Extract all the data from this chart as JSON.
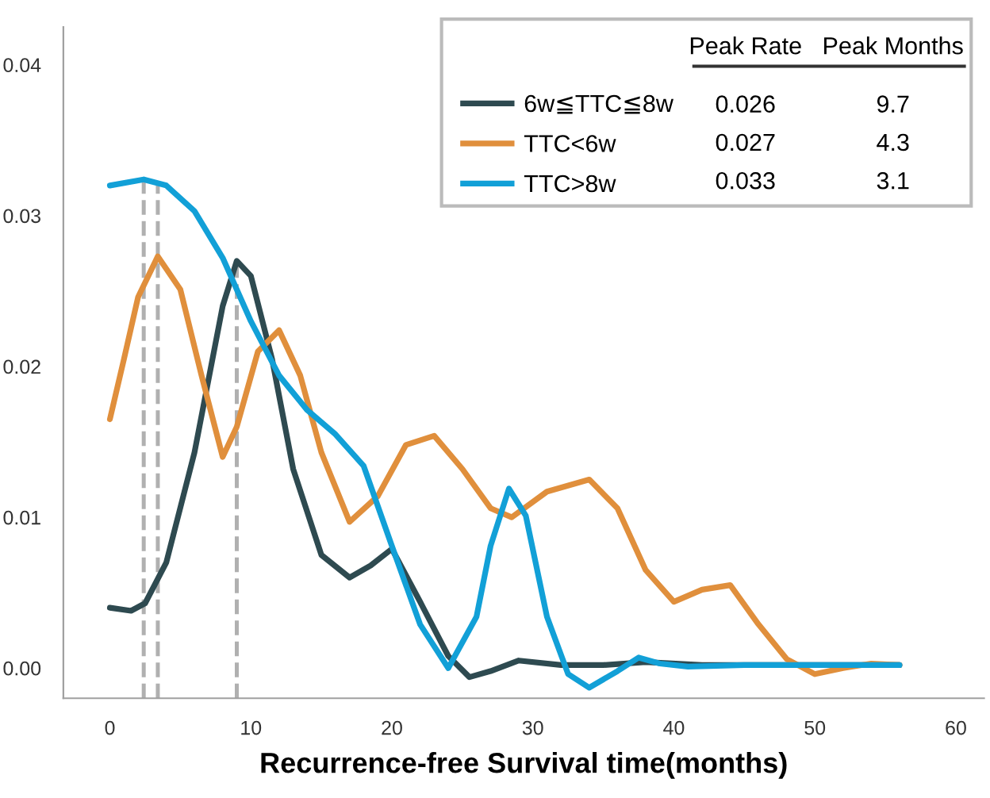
{
  "chart_data": {
    "type": "line",
    "xlabel": "Recurrence-free Survival time(months)",
    "xlim": [
      -3.3,
      62
    ],
    "xticks": [
      0,
      10,
      20,
      30,
      40,
      50,
      60
    ],
    "ylim": [
      -0.002,
      0.0425
    ],
    "yticks": [
      {
        "value": 0,
        "label": "0.00"
      },
      0.01,
      0.02,
      0.03,
      0.04
    ],
    "grid": false,
    "legend": "top right",
    "line_style": "solid",
    "marker": "none",
    "series": [
      {
        "name": "6w≦TTC≦8w",
        "color": "#2e4a50",
        "x": [
          0,
          1.5,
          2.5,
          4,
          6,
          8,
          9,
          10,
          11.5,
          13,
          15,
          17,
          18.5,
          20,
          22,
          24,
          25.5,
          27,
          29,
          32,
          35,
          38,
          42,
          56
        ],
        "values": [
          0.004,
          0.0038,
          0.0043,
          0.007,
          0.0143,
          0.024,
          0.027,
          0.026,
          0.0205,
          0.0132,
          0.0075,
          0.006,
          0.0068,
          0.0079,
          0.0044,
          0.0008,
          -0.0006,
          -0.0002,
          0.0005,
          0.0002,
          0.0002,
          0.0004,
          0.0002,
          0.0002
        ]
      },
      {
        "name": "TTC<6w",
        "color": "#e08f3c",
        "x": [
          0,
          1,
          2,
          3.4,
          5,
          6.5,
          8,
          9,
          10.5,
          12,
          13.5,
          15,
          17,
          19,
          21,
          23,
          25,
          27,
          28.5,
          31,
          34,
          36,
          38,
          40,
          42,
          44,
          46,
          48,
          50,
          52,
          54,
          56
        ],
        "values": [
          0.0165,
          0.0205,
          0.0246,
          0.0273,
          0.0251,
          0.0194,
          0.014,
          0.016,
          0.021,
          0.0224,
          0.0194,
          0.0143,
          0.0097,
          0.0114,
          0.0148,
          0.0154,
          0.0132,
          0.0106,
          0.01,
          0.0117,
          0.0125,
          0.0106,
          0.0065,
          0.0044,
          0.0052,
          0.0055,
          0.0029,
          0.0006,
          -0.0004,
          0.0,
          0.0003,
          0.0002
        ]
      },
      {
        "name": "TTC>8w",
        "color": "#12a0d7",
        "x": [
          0,
          2.4,
          4,
          6,
          8,
          10,
          12,
          14,
          16,
          18,
          20,
          22,
          24,
          26,
          27,
          28.3,
          29.5,
          31,
          32.5,
          34,
          36,
          37.5,
          39,
          41,
          45,
          56
        ],
        "values": [
          0.032,
          0.0324,
          0.032,
          0.0303,
          0.0272,
          0.023,
          0.0194,
          0.0171,
          0.0155,
          0.0134,
          0.0081,
          0.0029,
          0.0,
          0.0034,
          0.0081,
          0.0119,
          0.0101,
          0.0034,
          -0.0004,
          -0.0013,
          -0.0002,
          0.0007,
          0.0003,
          0.0001,
          0.0002,
          0.0002
        ]
      }
    ],
    "ref_lines": [
      {
        "axis": "x",
        "value": 2.4,
        "color": "#b0b0b0",
        "line_style": "dashed"
      },
      {
        "axis": "x",
        "value": 3.4,
        "color": "#b0b0b0",
        "line_style": "dashed"
      },
      {
        "axis": "x",
        "value": 9.0,
        "color": "#b0b0b0",
        "line_style": "dashed"
      }
    ],
    "annotations": [
      "Peak Rate",
      "Peak Months",
      "0.026",
      "9.7",
      "0.027",
      "4.3",
      "0.033",
      "3.1"
    ]
  }
}
